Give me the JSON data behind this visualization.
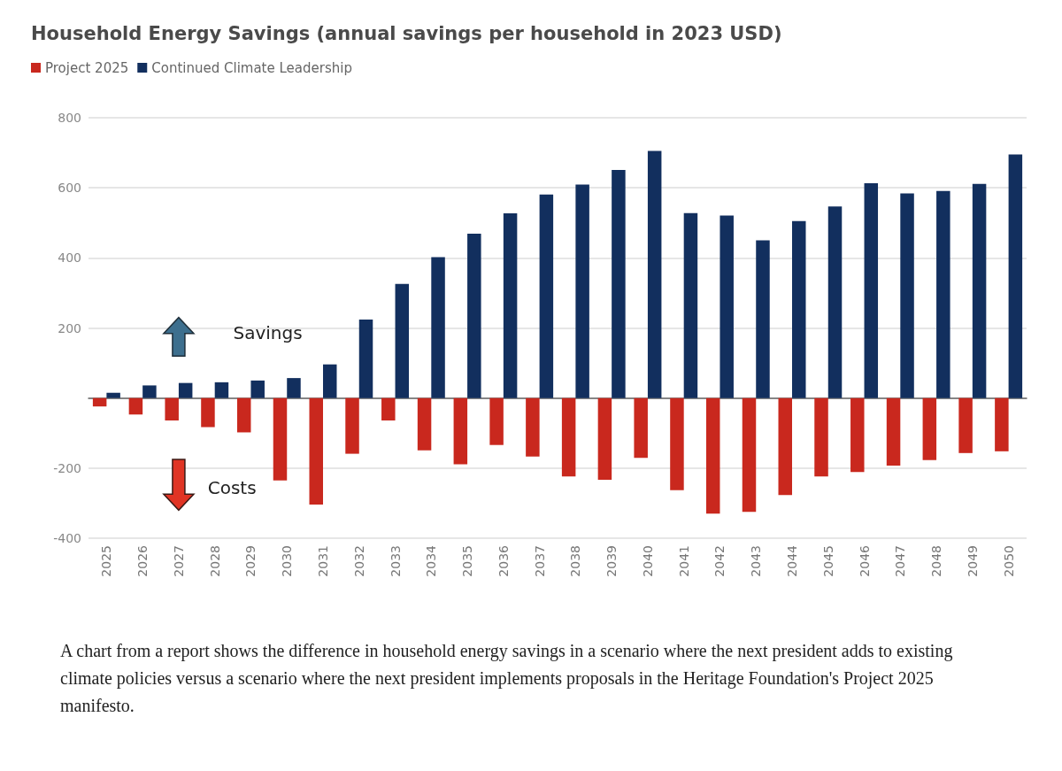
{
  "chart_data": {
    "type": "bar",
    "title": "Household Energy Savings (annual savings per household in 2023 USD)",
    "categories": [
      "2025",
      "2026",
      "2027",
      "2028",
      "2029",
      "2030",
      "2031",
      "2032",
      "2033",
      "2034",
      "2035",
      "2036",
      "2037",
      "2038",
      "2039",
      "2040",
      "2041",
      "2042",
      "2043",
      "2044",
      "2045",
      "2046",
      "2047",
      "2048",
      "2049",
      "2050"
    ],
    "series": [
      {
        "name": "Project 2025",
        "color": "#c9281e",
        "values": [
          -24,
          -47,
          -64,
          -83,
          -98,
          -235,
          -304,
          -159,
          -64,
          -149,
          -189,
          -134,
          -167,
          -224,
          -233,
          -171,
          -263,
          -330,
          -325,
          -277,
          -224,
          -211,
          -193,
          -177,
          -157,
          -152
        ]
      },
      {
        "name": "Continued Climate Leadership",
        "color": "#122f5e",
        "values": [
          15,
          36,
          43,
          45,
          50,
          57,
          96,
          224,
          326,
          402,
          469,
          527,
          581,
          609,
          651,
          705,
          528,
          521,
          450,
          505,
          547,
          613,
          584,
          591,
          611,
          695
        ]
      }
    ],
    "ylim": [
      -400,
      800
    ],
    "yticks": [
      -400,
      -200,
      {
        "value": 0,
        "label": null
      },
      200,
      400,
      600,
      800
    ],
    "grid": "y",
    "legend": "top left",
    "annotations": [
      "Savings",
      "Costs",
      "A chart from a report shows the difference in household energy savings in a scenario where the next president adds to existing climate policies versus a scenario where the next president implements proposals in the Heritage Foundation's Project 2025 manifesto."
    ]
  }
}
